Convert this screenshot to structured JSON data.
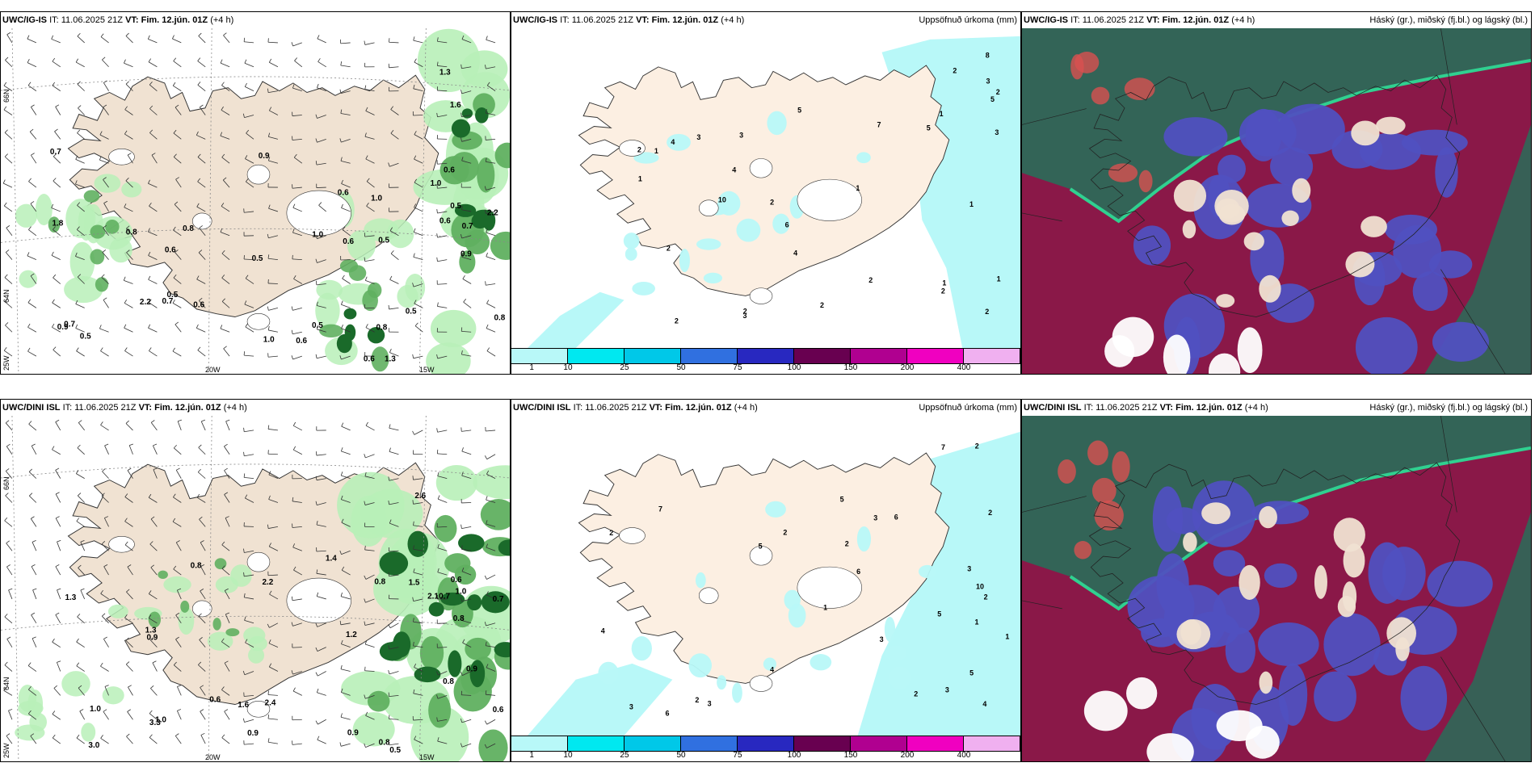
{
  "rows": [
    {
      "model": "UWC/IG-IS",
      "panels": [
        {
          "kind": "wind",
          "model": "UWC/IG-IS",
          "it_label": "IT:",
          "it_value": "11.06.2025 21Z",
          "vt_label": "VT:",
          "vt_value": "Fim. 12.jún. 01Z",
          "lead": "(+4 h)",
          "right_title": ""
        },
        {
          "kind": "precip",
          "model": "UWC/IG-IS",
          "it_label": "IT:",
          "it_value": "11.06.2025 21Z",
          "vt_label": "VT:",
          "vt_value": "Fim. 12.jún. 01Z",
          "lead": "(+4 h)",
          "right_title": "Uppsöfnuð úrkoma (mm)"
        },
        {
          "kind": "cloud",
          "model": "UWC/IG-IS",
          "it_label": "IT:",
          "it_value": "11.06.2025 21Z",
          "vt_label": "VT:",
          "vt_value": "Fim. 12.jún. 01Z",
          "lead": "(+4 h)",
          "right_title": "Háský (gr.), miðský (fj.bl.) og lágský (bl.)"
        }
      ]
    },
    {
      "model": "UWC/DINI ISL",
      "panels": [
        {
          "kind": "wind",
          "model": "UWC/DINI ISL",
          "it_label": "IT:",
          "it_value": "11.06.2025 21Z",
          "vt_label": "VT:",
          "vt_value": "Fim. 12.jún. 01Z",
          "lead": "(+4 h)",
          "right_title": ""
        },
        {
          "kind": "precip",
          "model": "UWC/DINI ISL",
          "it_label": "IT:",
          "it_value": "11.06.2025 21Z",
          "vt_label": "VT:",
          "vt_value": "Fim. 12.jún. 01Z",
          "lead": "(+4 h)",
          "right_title": "Uppsöfnuð úrkoma (mm)"
        },
        {
          "kind": "cloud",
          "model": "UWC/DINI ISL",
          "it_label": "IT:",
          "it_value": "11.06.2025 21Z",
          "vt_label": "VT:",
          "vt_value": "Fim. 12.jún. 01Z",
          "lead": "(+4 h)",
          "right_title": "Háský (gr.), miðský (fj.bl.) og lágský (bl.)"
        }
      ]
    }
  ],
  "precip_legend": {
    "labels": [
      "1",
      "10",
      "25",
      "50",
      "75",
      "100",
      "150",
      "200",
      "400"
    ],
    "colors": [
      "#b8f8f8",
      "#00e8f0",
      "#00c8e8",
      "#3070e0",
      "#2828c0",
      "#680050",
      "#b00090",
      "#f000c0",
      "#f0b0f0"
    ]
  },
  "grid_labels": {
    "lat_66": "66N",
    "lat_64": "64N",
    "lon_25": "25W",
    "lon_20": "20W",
    "lon_15": "15W"
  },
  "colors": {
    "land": "#f0e2d2",
    "precip_land": "#fcefe2",
    "rain_light": "#b8f0b8",
    "rain_mid": "#60b060",
    "rain_dark": "#1a6a2a",
    "cloud_high": "#2e6858",
    "cloud_mid": "#5050c0",
    "cloud_low": "#8a1848"
  },
  "wind_values_top": [
    "0.7",
    "0.6",
    "1.3",
    "2.2",
    "0.8",
    "1.6",
    "0.9",
    "0.5",
    "0.7",
    "0.6",
    "0.5",
    "0.9",
    "0.7",
    "0.6",
    "0.6",
    "0.5",
    "0.5",
    "0.6",
    "1.0",
    "0.8",
    "1.3",
    "0.8",
    "0.6",
    "2.2",
    "0.8",
    "1.0",
    "1.0",
    "0.7",
    "1.0",
    "0.9",
    "0.5",
    "0.6",
    "0.5",
    "0.5",
    "0.6",
    "1.8"
  ],
  "wind_values_bottom": [
    "0.5",
    "0.6",
    "2.6",
    "1.5",
    "0.9",
    "1.0",
    "0.8",
    "0.7",
    "2.1",
    "0.8",
    "0.6",
    "0.7",
    "0.9",
    "1.0",
    "1.6",
    "3.3",
    "1.3",
    "2.4",
    "1.2",
    "1.0",
    "0.6",
    "1.3",
    "0.9",
    "0.8",
    "0.8",
    "0.9",
    "1.4",
    "3.0",
    "2.2",
    "0.8"
  ],
  "precip_values_top": [
    "2",
    "3",
    "2",
    "1",
    "2",
    "2",
    "1",
    "1",
    "3",
    "5",
    "1",
    "8",
    "2",
    "1",
    "2",
    "6",
    "1",
    "3",
    "2",
    "4",
    "5",
    "2",
    "10",
    "2",
    "4",
    "5",
    "7",
    "3",
    "4",
    "3",
    "1",
    "2",
    "2"
  ],
  "precip_values_bottom": [
    "2",
    "1",
    "5",
    "1",
    "4",
    "2",
    "7",
    "3",
    "10",
    "2",
    "5",
    "3",
    "3",
    "6",
    "2",
    "4",
    "5",
    "6",
    "4",
    "3",
    "2",
    "1",
    "2",
    "5",
    "3",
    "7",
    "6",
    "2",
    "3",
    "2"
  ]
}
